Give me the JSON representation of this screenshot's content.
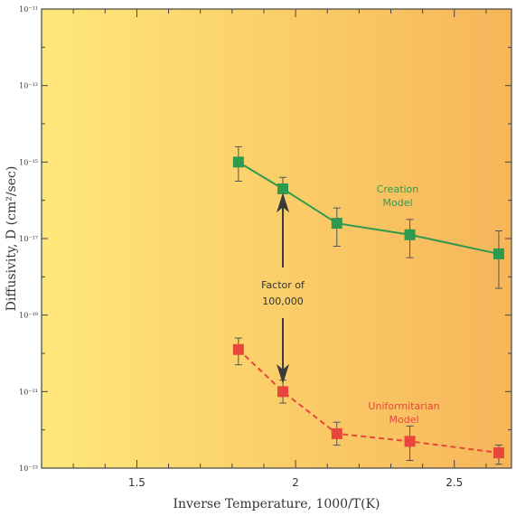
{
  "chart_data": {
    "type": "line",
    "xlabel": "Inverse Temperature, 1000/T(K)",
    "ylabel": "Diffusivity, D (cm²/sec)",
    "xlim": [
      1.2,
      2.68
    ],
    "ylim": [
      -23,
      -11
    ],
    "x_ticks": [
      "1.5",
      "2",
      "2.5"
    ],
    "y_tick_labels": [
      "10⁻¹¹",
      "10⁻¹³",
      "10⁻¹⁵",
      "10⁻¹⁷",
      "10⁻¹⁹",
      "10⁻²¹",
      "10⁻²³"
    ],
    "y_tick_values": [
      -11,
      -13,
      -15,
      -17,
      -19,
      -21,
      -23
    ],
    "grid": false,
    "background": {
      "left": "#ffe87a",
      "right": "#f6b55a"
    },
    "series": [
      {
        "name": "Creation Model",
        "color": "#2e9a4e",
        "line_style": "solid",
        "x": [
          1.82,
          1.96,
          2.13,
          2.36,
          2.64
        ],
        "log10_y": [
          -15.0,
          -15.7,
          -16.6,
          -16.9,
          -17.4
        ],
        "err_low": [
          -15.5,
          -16.2,
          -17.2,
          -17.5,
          -18.3
        ],
        "err_high": [
          -14.6,
          -15.4,
          -16.2,
          -16.5,
          -16.8
        ],
        "label_lines": [
          "Creation",
          "Model"
        ]
      },
      {
        "name": "Uniformitarian Model",
        "color": "#e8453c",
        "line_style": "dashed",
        "x": [
          1.82,
          1.96,
          2.13,
          2.36,
          2.64
        ],
        "log10_y": [
          -19.9,
          -21.0,
          -22.1,
          -22.3,
          -22.6
        ],
        "err_low": [
          -20.3,
          -21.3,
          -22.4,
          -22.8,
          -22.9
        ],
        "err_high": [
          -19.6,
          -20.7,
          -21.8,
          -21.9,
          -22.4
        ],
        "label_lines": [
          "Uniformitarian",
          "Model"
        ]
      }
    ],
    "annotation": {
      "lines": [
        "Factor of",
        "100,000"
      ],
      "arrow_x": 1.96,
      "arrow_from": -15.8,
      "arrow_to": -20.8
    }
  }
}
